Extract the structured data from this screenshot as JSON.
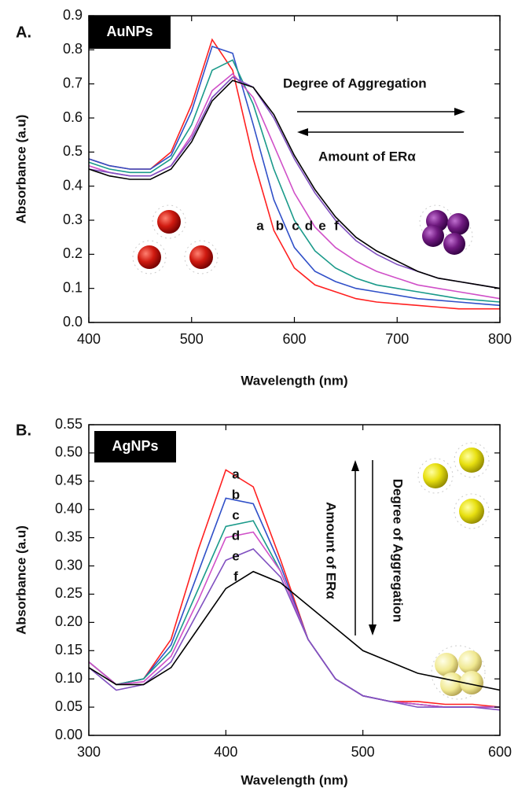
{
  "chart_data": [
    {
      "type": "line",
      "panel_label": "A.",
      "label": "AuNPs",
      "xlabel": "Wavelength (nm)",
      "ylabel": "Absorbance (a.u)",
      "annotations": [
        "Degree of Aggregation",
        "Amount of ERα"
      ],
      "xlim": [
        400,
        800
      ],
      "ylim": [
        0,
        0.9
      ],
      "xticks": [
        400,
        500,
        600,
        700,
        800
      ],
      "yticks": [
        {
          "value": 0,
          "label": "0.0"
        },
        0.1,
        0.2,
        0.3,
        0.4,
        0.5,
        0.6,
        0.7,
        0.8,
        0.9
      ],
      "x": [
        400,
        420,
        440,
        460,
        480,
        500,
        520,
        540,
        560,
        580,
        600,
        620,
        640,
        660,
        680,
        700,
        720,
        740,
        760,
        780,
        800
      ],
      "series": [
        {
          "name": "a",
          "color": "#ff2020",
          "values": [
            0.48,
            0.46,
            0.45,
            0.45,
            0.5,
            0.64,
            0.83,
            0.74,
            0.48,
            0.27,
            0.16,
            0.11,
            0.09,
            0.07,
            0.06,
            0.055,
            0.05,
            0.045,
            0.04,
            0.04,
            0.04
          ]
        },
        {
          "name": "b",
          "color": "#3050c8",
          "values": [
            0.48,
            0.46,
            0.45,
            0.45,
            0.49,
            0.62,
            0.81,
            0.79,
            0.58,
            0.36,
            0.22,
            0.15,
            0.12,
            0.1,
            0.09,
            0.08,
            0.07,
            0.065,
            0.06,
            0.055,
            0.05
          ]
        },
        {
          "name": "c",
          "color": "#1a9a8a",
          "values": [
            0.47,
            0.45,
            0.44,
            0.44,
            0.48,
            0.58,
            0.74,
            0.77,
            0.64,
            0.45,
            0.3,
            0.21,
            0.16,
            0.13,
            0.11,
            0.1,
            0.09,
            0.08,
            0.07,
            0.065,
            0.06
          ]
        },
        {
          "name": "d",
          "color": "#d050c8",
          "values": [
            0.46,
            0.44,
            0.43,
            0.43,
            0.46,
            0.55,
            0.68,
            0.73,
            0.66,
            0.52,
            0.38,
            0.28,
            0.22,
            0.18,
            0.15,
            0.13,
            0.11,
            0.1,
            0.09,
            0.08,
            0.07
          ]
        },
        {
          "name": "e",
          "color": "#8050c0",
          "values": [
            0.45,
            0.44,
            0.43,
            0.43,
            0.46,
            0.54,
            0.66,
            0.72,
            0.69,
            0.6,
            0.48,
            0.38,
            0.3,
            0.24,
            0.2,
            0.17,
            0.15,
            0.13,
            0.12,
            0.11,
            0.1
          ]
        },
        {
          "name": "f",
          "color": "#000000",
          "values": [
            0.45,
            0.43,
            0.42,
            0.42,
            0.45,
            0.53,
            0.65,
            0.71,
            0.69,
            0.61,
            0.49,
            0.39,
            0.31,
            0.25,
            0.21,
            0.18,
            0.15,
            0.13,
            0.12,
            0.11,
            0.1
          ]
        }
      ]
    },
    {
      "type": "line",
      "panel_label": "B.",
      "label": "AgNPs",
      "xlabel": "Wavelength (nm)",
      "ylabel": "Absorbance (a.u)",
      "annotations": [
        "Amount of ERα",
        "Degree of Aggregation"
      ],
      "xlim": [
        300,
        600
      ],
      "ylim": [
        0,
        0.55
      ],
      "xticks": [
        300,
        400,
        500,
        600
      ],
      "yticks": [
        {
          "value": 0,
          "label": "0.00"
        },
        0.05,
        {
          "value": 0.1,
          "label": "0.10"
        },
        0.15,
        {
          "value": 0.2,
          "label": "0.20"
        },
        0.25,
        {
          "value": 0.3,
          "label": "0.30"
        },
        0.35,
        {
          "value": 0.4,
          "label": "0.40"
        },
        0.45,
        {
          "value": 0.5,
          "label": "0.50"
        },
        0.55
      ],
      "x": [
        300,
        320,
        340,
        360,
        380,
        400,
        420,
        440,
        460,
        480,
        500,
        520,
        540,
        560,
        580,
        600
      ],
      "series": [
        {
          "name": "a",
          "color": "#ff2020",
          "values": [
            0.13,
            0.09,
            0.1,
            0.17,
            0.33,
            0.47,
            0.44,
            0.31,
            0.17,
            0.1,
            0.07,
            0.06,
            0.06,
            0.055,
            0.055,
            0.05
          ]
        },
        {
          "name": "b",
          "color": "#3050c8",
          "values": [
            0.13,
            0.09,
            0.1,
            0.16,
            0.29,
            0.42,
            0.41,
            0.3,
            0.17,
            0.1,
            0.07,
            0.06,
            0.055,
            0.05,
            0.05,
            0.05
          ]
        },
        {
          "name": "c",
          "color": "#1a9a8a",
          "values": [
            0.13,
            0.09,
            0.1,
            0.15,
            0.26,
            0.37,
            0.38,
            0.29,
            0.17,
            0.1,
            0.07,
            0.06,
            0.055,
            0.05,
            0.05,
            0.05
          ]
        },
        {
          "name": "d",
          "color": "#d050c8",
          "values": [
            0.13,
            0.09,
            0.095,
            0.14,
            0.24,
            0.35,
            0.36,
            0.29,
            0.17,
            0.1,
            0.07,
            0.06,
            0.055,
            0.05,
            0.05,
            0.05
          ]
        },
        {
          "name": "e",
          "color": "#8050c0",
          "values": [
            0.12,
            0.08,
            0.09,
            0.13,
            0.22,
            0.31,
            0.33,
            0.28,
            0.17,
            0.1,
            0.07,
            0.06,
            0.05,
            0.05,
            0.05,
            0.045
          ]
        },
        {
          "name": "f",
          "color": "#000000",
          "values": [
            0.12,
            0.09,
            0.09,
            0.12,
            0.19,
            0.26,
            0.29,
            0.27,
            0.23,
            0.19,
            0.15,
            0.13,
            0.11,
            0.1,
            0.09,
            0.08
          ]
        }
      ]
    }
  ]
}
